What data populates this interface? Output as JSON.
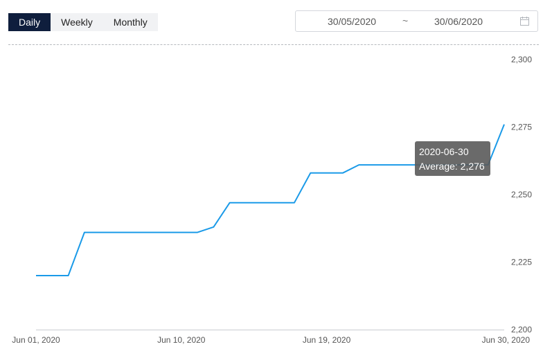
{
  "tabs": [
    {
      "label": "Daily",
      "active": true
    },
    {
      "label": "Weekly",
      "active": false
    },
    {
      "label": "Monthly",
      "active": false
    }
  ],
  "date_range": {
    "from": "30/05/2020",
    "separator": "~",
    "to": "30/06/2020",
    "icon": "calendar-icon"
  },
  "tooltip": {
    "date": "2020-06-30",
    "label": "Average",
    "value": "2,276",
    "text": "Average: 2,276"
  },
  "colors": {
    "line": "#1a9ae8",
    "active_tab": "#0f1e3d"
  },
  "chart_data": {
    "type": "line",
    "title": "",
    "xlabel": "",
    "ylabel": "",
    "x": [
      "2020-06-01",
      "2020-06-02",
      "2020-06-03",
      "2020-06-04",
      "2020-06-05",
      "2020-06-06",
      "2020-06-07",
      "2020-06-08",
      "2020-06-09",
      "2020-06-10",
      "2020-06-11",
      "2020-06-12",
      "2020-06-13",
      "2020-06-14",
      "2020-06-15",
      "2020-06-16",
      "2020-06-17",
      "2020-06-18",
      "2020-06-19",
      "2020-06-20",
      "2020-06-21",
      "2020-06-22",
      "2020-06-23",
      "2020-06-24",
      "2020-06-25",
      "2020-06-26",
      "2020-06-27",
      "2020-06-28",
      "2020-06-29",
      "2020-06-30"
    ],
    "series": [
      {
        "values": [
          2220,
          2220,
          2220,
          2236,
          2236,
          2236,
          2236,
          2236,
          2236,
          2236,
          2236,
          2238,
          2247,
          2247,
          2247,
          2247,
          2247,
          2258,
          2258,
          2258,
          2261,
          2261,
          2261,
          2261,
          2261,
          2261,
          2261,
          2261,
          2261,
          2276
        ]
      }
    ],
    "x_tick_labels": [
      "Jun 01, 2020",
      "Jun 10, 2020",
      "Jun 19, 2020",
      "Jun 30, 2020"
    ],
    "y_ticks": [
      2200,
      2225,
      2250,
      2275,
      2300
    ],
    "y_tick_labels": [
      "2,200",
      "2,225",
      "2,250",
      "2,275",
      "2,300"
    ],
    "ylim": [
      2200,
      2300
    ],
    "grid": false,
    "legend": "none"
  }
}
